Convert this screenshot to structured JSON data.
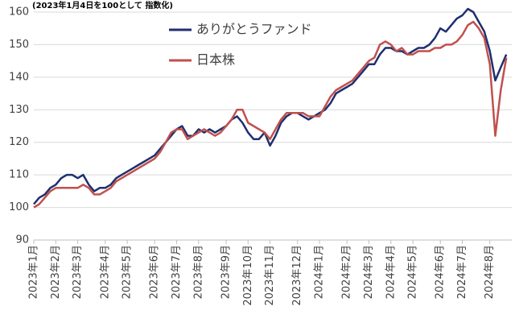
{
  "chart_data": {
    "type": "line",
    "title": "(2023年1月4日を100として 指数化)",
    "categories": [
      "2023年1月",
      null,
      null,
      null,
      "2023年2月",
      null,
      null,
      null,
      "2023年3月",
      null,
      null,
      null,
      null,
      "2023年4月",
      null,
      null,
      null,
      "2023年5月",
      null,
      null,
      null,
      null,
      "2023年6月",
      null,
      null,
      null,
      "2023年7月",
      null,
      null,
      null,
      "2023年8月",
      null,
      null,
      null,
      null,
      "2023年9月",
      null,
      null,
      null,
      "2023年10月",
      null,
      null,
      null,
      "2023年11月",
      null,
      null,
      null,
      null,
      "2023年12月",
      null,
      null,
      null,
      "2024年1月",
      null,
      null,
      null,
      null,
      "2024年2月",
      null,
      null,
      null,
      "2024年3月",
      null,
      null,
      null,
      "2024年4月",
      null,
      null,
      null,
      "2024年5月",
      null,
      null,
      null,
      null,
      "2024年6月",
      null,
      null,
      null,
      "2024年7月",
      null,
      null,
      null,
      null,
      "2024年8月",
      null,
      null,
      null
    ],
    "series": [
      {
        "name": "ありがとうファンド",
        "color": "#1f2f6e",
        "values": [
          101,
          103,
          104,
          106,
          107,
          109,
          110,
          110,
          109,
          110,
          107,
          105,
          106,
          106,
          107,
          109,
          110,
          111,
          112,
          113,
          114,
          115,
          116,
          118,
          120,
          122,
          124,
          125,
          122,
          122,
          124,
          123,
          124,
          123,
          124,
          125,
          127,
          128,
          126,
          123,
          121,
          121,
          123,
          119,
          122,
          126,
          128,
          129,
          129,
          128,
          127,
          128,
          129,
          130,
          132,
          135,
          136,
          137,
          138,
          140,
          142,
          144,
          144,
          147,
          149,
          149,
          148,
          148,
          147,
          148,
          149,
          149,
          150,
          152,
          155,
          154,
          156,
          158,
          159,
          161,
          160,
          157,
          154,
          148,
          139,
          143,
          147
        ]
      },
      {
        "name": "日本株",
        "color": "#c0504d",
        "values": [
          100,
          101,
          103,
          105,
          106,
          106,
          106,
          106,
          106,
          107,
          106,
          104,
          104,
          105,
          106,
          108,
          109,
          110,
          111,
          112,
          113,
          114,
          115,
          117,
          120,
          123,
          124,
          124,
          121,
          122,
          123,
          124,
          123,
          122,
          123,
          125,
          127,
          130,
          130,
          126,
          125,
          124,
          123,
          121,
          124,
          127,
          129,
          129,
          129,
          129,
          128,
          128,
          128,
          131,
          134,
          136,
          137,
          138,
          139,
          141,
          143,
          145,
          146,
          150,
          151,
          150,
          148,
          149,
          147,
          147,
          148,
          148,
          148,
          149,
          149,
          150,
          150,
          151,
          153,
          156,
          157,
          155,
          152,
          144,
          122,
          136,
          146
        ]
      }
    ],
    "ylim": [
      90,
      160
    ],
    "yticks": [
      90,
      100,
      110,
      120,
      130,
      140,
      150,
      160
    ],
    "grid": true
  }
}
